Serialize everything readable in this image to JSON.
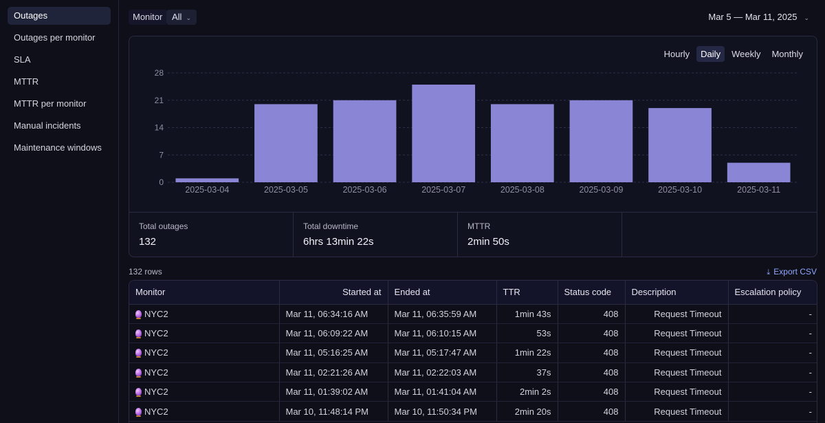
{
  "sidebar": {
    "items": [
      {
        "label": "Outages",
        "active": true
      },
      {
        "label": "Outages per monitor"
      },
      {
        "label": "SLA"
      },
      {
        "label": "MTTR"
      },
      {
        "label": "MTTR per monitor"
      },
      {
        "label": "Manual incidents"
      },
      {
        "label": "Maintenance windows"
      }
    ]
  },
  "filter": {
    "label": "Monitor",
    "value": "All"
  },
  "date_range": "Mar 5 — Mar 11, 2025",
  "granularity": {
    "options": [
      "Hourly",
      "Daily",
      "Weekly",
      "Monthly"
    ],
    "selected": "Daily"
  },
  "chart_data": {
    "type": "bar",
    "categories": [
      "2025-03-04",
      "2025-03-05",
      "2025-03-06",
      "2025-03-07",
      "2025-03-08",
      "2025-03-09",
      "2025-03-10",
      "2025-03-11"
    ],
    "values": [
      1,
      20,
      21,
      25,
      20,
      21,
      19,
      5
    ],
    "ylim": [
      0,
      28
    ],
    "yticks": [
      0,
      7,
      14,
      21,
      28
    ],
    "title": "",
    "xlabel": "",
    "ylabel": "",
    "color": "#8b85d6"
  },
  "stats": {
    "total_outages": {
      "label": "Total outages",
      "value": "132"
    },
    "total_downtime": {
      "label": "Total downtime",
      "value": "6hrs 13min 22s"
    },
    "mttr": {
      "label": "MTTR",
      "value": "2min 50s"
    }
  },
  "table": {
    "rows_count": "132 rows",
    "export_label": "Export CSV",
    "columns": [
      "Monitor",
      "Started at",
      "Ended at",
      "TTR",
      "Status code",
      "Description",
      "Escalation policy"
    ],
    "rows": [
      {
        "monitor": "NYC2",
        "started": "Mar 11, 06:34:16 AM",
        "ended": "Mar 11, 06:35:59 AM",
        "ttr": "1min 43s",
        "status": "408",
        "description": "Request Timeout",
        "policy": "-"
      },
      {
        "monitor": "NYC2",
        "started": "Mar 11, 06:09:22 AM",
        "ended": "Mar 11, 06:10:15 AM",
        "ttr": "53s",
        "status": "408",
        "description": "Request Timeout",
        "policy": "-"
      },
      {
        "monitor": "NYC2",
        "started": "Mar 11, 05:16:25 AM",
        "ended": "Mar 11, 05:17:47 AM",
        "ttr": "1min 22s",
        "status": "408",
        "description": "Request Timeout",
        "policy": "-"
      },
      {
        "monitor": "NYC2",
        "started": "Mar 11, 02:21:26 AM",
        "ended": "Mar 11, 02:22:03 AM",
        "ttr": "37s",
        "status": "408",
        "description": "Request Timeout",
        "policy": "-"
      },
      {
        "monitor": "NYC2",
        "started": "Mar 11, 01:39:02 AM",
        "ended": "Mar 11, 01:41:04 AM",
        "ttr": "2min 2s",
        "status": "408",
        "description": "Request Timeout",
        "policy": "-"
      },
      {
        "monitor": "NYC2",
        "started": "Mar 10, 11:48:14 PM",
        "ended": "Mar 10, 11:50:34 PM",
        "ttr": "2min 20s",
        "status": "408",
        "description": "Request Timeout",
        "policy": "-"
      }
    ]
  }
}
